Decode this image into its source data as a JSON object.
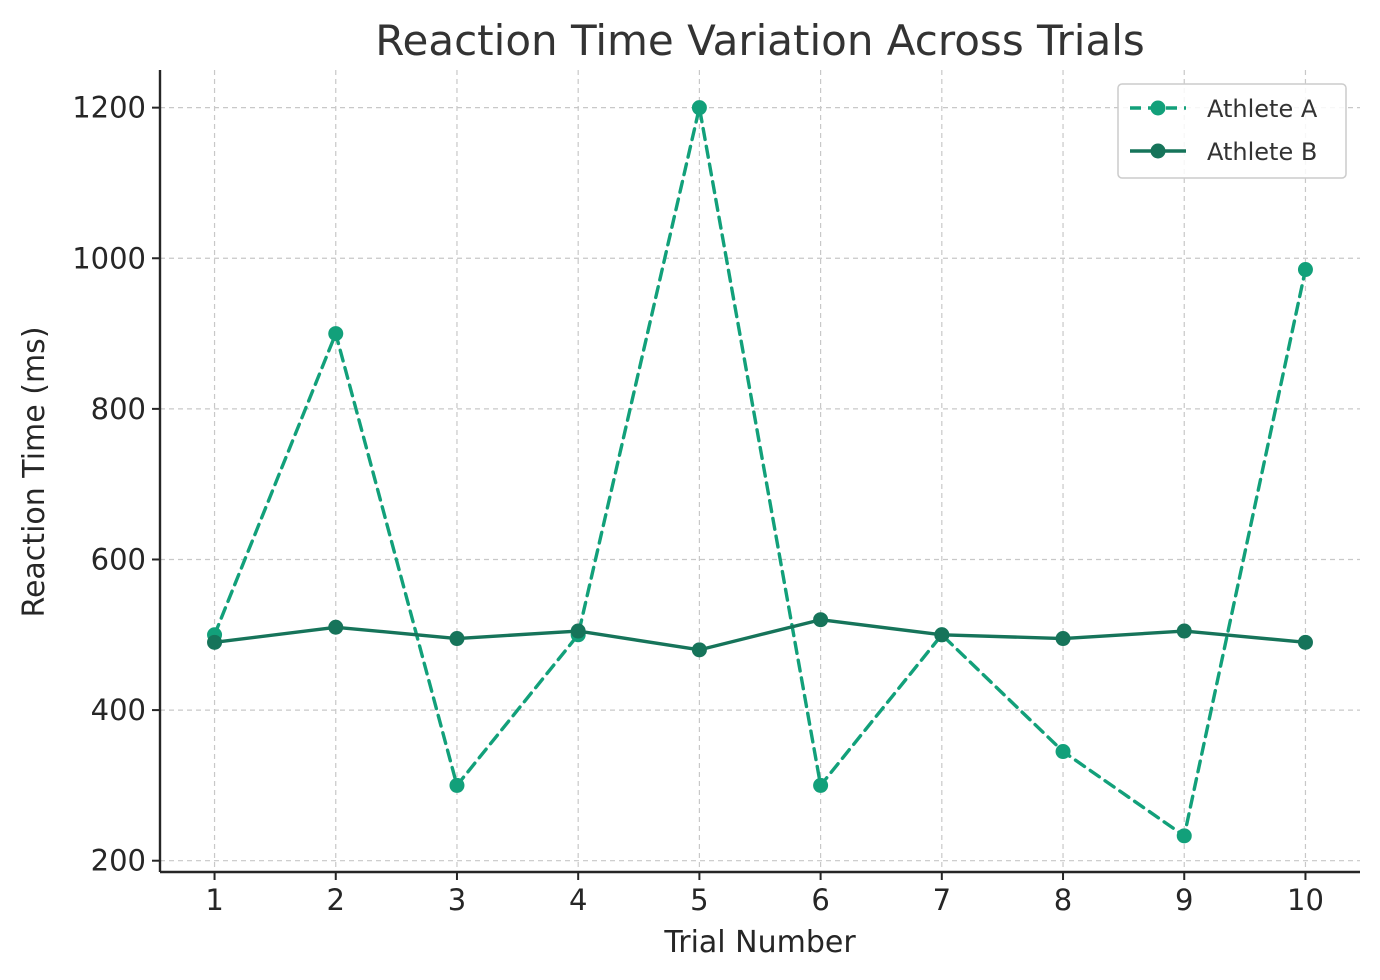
{
  "chart_data": {
    "type": "line",
    "title": "Reaction Time Variation Across Trials",
    "xlabel": "Trial Number",
    "ylabel": "Reaction Time (ms)",
    "x": [
      1,
      2,
      3,
      4,
      5,
      6,
      7,
      8,
      9,
      10
    ],
    "xticks": [
      "1",
      "2",
      "3",
      "4",
      "5",
      "6",
      "7",
      "8",
      "9",
      "10"
    ],
    "yticks": [
      "200",
      "400",
      "600",
      "800",
      "1000",
      "1200"
    ],
    "xlim": [
      0.55,
      10.45
    ],
    "ylim": [
      185,
      1250
    ],
    "grid": true,
    "legend_position": "top-right",
    "series": [
      {
        "name": "Athlete A",
        "values": [
          500,
          900,
          300,
          500,
          1200,
          300,
          500,
          345,
          233,
          985
        ],
        "color": "#12a07a",
        "line_style": "dashed",
        "marker": "circle"
      },
      {
        "name": "Athlete B",
        "values": [
          490,
          510,
          495,
          505,
          480,
          520,
          500,
          495,
          505,
          490
        ],
        "color": "#16745a",
        "line_style": "solid",
        "marker": "circle"
      }
    ]
  }
}
